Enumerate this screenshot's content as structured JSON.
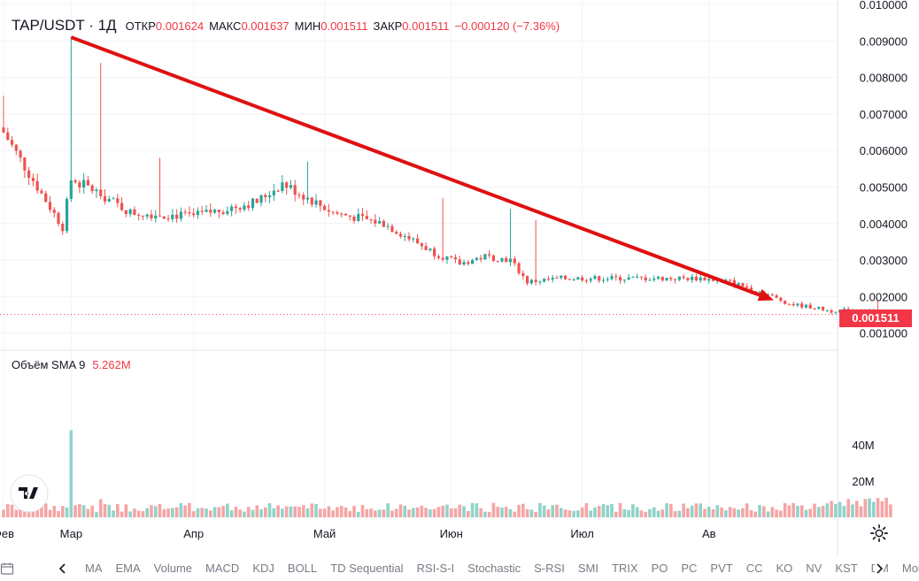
{
  "legend": {
    "symbol": "TAP/USDT · 1Д",
    "open_label": "ОТКР",
    "open": "0.001624",
    "high_label": "МАКС",
    "high": "0.001637",
    "low_label": "МИН",
    "low": "0.001511",
    "close_label": "ЗАКР",
    "close": "0.001511",
    "change": "−0.000120 (−7.36%)"
  },
  "volume_legend": {
    "label": "Объём SMA 9",
    "value": "5.262M"
  },
  "last_price_tag": "0.001511",
  "indicators": [
    "MA",
    "EMA",
    "Volume",
    "MACD",
    "KDJ",
    "BOLL",
    "TD Sequential",
    "RSI-S-I",
    "Stochastic",
    "S-RSI",
    "SMI",
    "TRIX",
    "PO",
    "PC",
    "PVT",
    "CC",
    "KO",
    "NV",
    "KST",
    "DM",
    "Mome"
  ],
  "colors": {
    "up": "#26a69a",
    "down": "#ef5350",
    "trend_arrow": "#e01010",
    "price_tag": "#f23645"
  },
  "icons": [
    "calendar-icon",
    "chevron-left-icon",
    "chevron-right-icon",
    "gear-icon"
  ],
  "chart_data": {
    "type": "candlestick",
    "symbol": "TAP/USDT",
    "interval": "1Д",
    "x_axis_labels": [
      "Фев",
      "Мар",
      "Апр",
      "Май",
      "Июн",
      "Июл",
      "Ав"
    ],
    "price_axis_labels": [
      "0.010000",
      "0.009000",
      "0.008000",
      "0.007000",
      "0.006000",
      "0.005000",
      "0.004000",
      "0.003000",
      "0.002000",
      "0.001000"
    ],
    "volume_axis_labels": [
      "40M",
      "20M"
    ],
    "price_range": [
      0.0008,
      0.01
    ],
    "volume_range_millions": [
      0,
      55
    ],
    "last_price": 0.001511,
    "trend_annotation": {
      "type": "arrow",
      "from_price": 0.0091,
      "to_price": 0.0019,
      "direction": "down"
    },
    "grid": true,
    "candles_per_month": [
      16,
      29,
      31,
      30,
      31,
      30,
      13
    ],
    "close_anchors": [
      {
        "i": 0,
        "close": 0.0065
      },
      {
        "i": 8,
        "close": 0.005
      },
      {
        "i": 14,
        "close": 0.0039
      },
      {
        "i": 16,
        "close": 0.0052
      },
      {
        "i": 20,
        "close": 0.005
      },
      {
        "i": 30,
        "close": 0.0043
      },
      {
        "i": 45,
        "close": 0.0042
      },
      {
        "i": 60,
        "close": 0.0046
      },
      {
        "i": 66,
        "close": 0.0051
      },
      {
        "i": 78,
        "close": 0.0043
      },
      {
        "i": 90,
        "close": 0.004
      },
      {
        "i": 96,
        "close": 0.0036
      },
      {
        "i": 102,
        "close": 0.0032
      },
      {
        "i": 108,
        "close": 0.0029
      },
      {
        "i": 114,
        "close": 0.0031
      },
      {
        "i": 120,
        "close": 0.003
      },
      {
        "i": 124,
        "close": 0.0024
      },
      {
        "i": 132,
        "close": 0.0025
      },
      {
        "i": 148,
        "close": 0.0025
      },
      {
        "i": 165,
        "close": 0.0025
      },
      {
        "i": 172,
        "close": 0.0024
      },
      {
        "i": 180,
        "close": 0.0021
      },
      {
        "i": 186,
        "close": 0.0018
      },
      {
        "i": 192,
        "close": 0.0017
      },
      {
        "i": 196,
        "close": 0.0016
      },
      {
        "i": 203,
        "close": 0.00165
      },
      {
        "i": 210,
        "close": 0.00151
      }
    ],
    "spikes": [
      {
        "i": 0,
        "high": 0.0075
      },
      {
        "i": 16,
        "high": 0.0091
      },
      {
        "i": 23,
        "high": 0.0084
      },
      {
        "i": 37,
        "high": 0.0058
      },
      {
        "i": 72,
        "high": 0.0057
      },
      {
        "i": 104,
        "high": 0.0047
      },
      {
        "i": 120,
        "high": 0.0044
      },
      {
        "i": 126,
        "high": 0.0041
      },
      {
        "i": 207,
        "high": 0.0019
      }
    ],
    "volume_spikes_millions": [
      {
        "i": 16,
        "volume": 48
      },
      {
        "i": 23,
        "volume": 10
      },
      {
        "i": 16,
        "volume": 48
      }
    ]
  }
}
